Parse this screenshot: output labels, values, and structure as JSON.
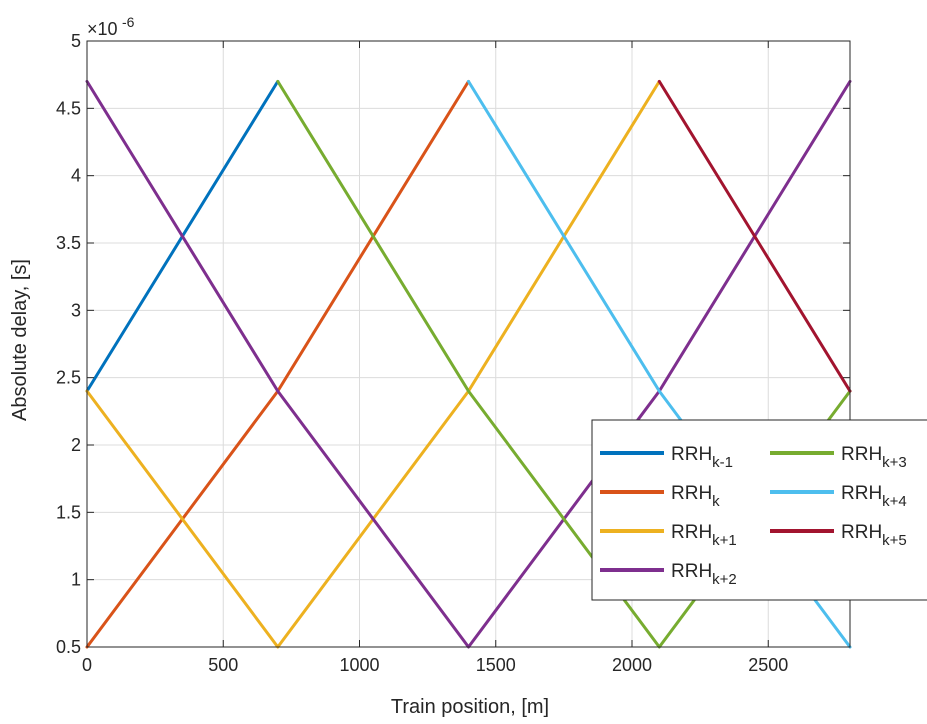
{
  "chart_data": {
    "type": "line",
    "xlabel": "Train position, [m]",
    "ylabel": "Absolute delay, [s]",
    "exponent": {
      "prefix": "×10",
      "power": "-6"
    },
    "xlim": [
      0,
      2800
    ],
    "ylim": [
      0.5,
      5.0
    ],
    "xticks": [
      0,
      500,
      1000,
      1500,
      2000,
      2500
    ],
    "yticks": [
      0.5,
      1,
      1.5,
      2,
      2.5,
      3,
      3.5,
      4,
      4.5,
      5
    ],
    "grid": true,
    "legend_position": "lower-right, two columns, partly outside the axes",
    "series": [
      {
        "name_base": "RRH",
        "name_sub": "k-1",
        "color": "#0072BD",
        "points": [
          [
            0,
            2.4
          ],
          [
            700,
            4.7
          ]
        ]
      },
      {
        "name_base": "RRH",
        "name_sub": "k",
        "color": "#D95319",
        "points": [
          [
            0,
            0.5
          ],
          [
            700,
            2.4
          ],
          [
            1400,
            4.7
          ]
        ]
      },
      {
        "name_base": "RRH",
        "name_sub": "k+1",
        "color": "#EDB120",
        "points": [
          [
            0,
            2.4
          ],
          [
            700,
            0.5
          ],
          [
            1400,
            2.4
          ],
          [
            2100,
            4.7
          ]
        ]
      },
      {
        "name_base": "RRH",
        "name_sub": "k+2",
        "color": "#7E2F8E",
        "points": [
          [
            0,
            4.7
          ],
          [
            700,
            2.4
          ],
          [
            1400,
            0.5
          ],
          [
            2100,
            2.4
          ],
          [
            2800,
            4.7
          ]
        ]
      },
      {
        "name_base": "RRH",
        "name_sub": "k+3",
        "color": "#77AC30",
        "points": [
          [
            700,
            4.7
          ],
          [
            1400,
            2.4
          ],
          [
            2100,
            0.5
          ],
          [
            2800,
            2.4
          ]
        ]
      },
      {
        "name_base": "RRH",
        "name_sub": "k+4",
        "color": "#4DBEEE",
        "points": [
          [
            1400,
            4.7
          ],
          [
            2100,
            2.4
          ],
          [
            2800,
            0.5
          ]
        ]
      },
      {
        "name_base": "RRH",
        "name_sub": "k+5",
        "color": "#A2142F",
        "points": [
          [
            2100,
            4.7
          ],
          [
            2800,
            2.4
          ]
        ]
      }
    ],
    "legend_order": [
      0,
      4,
      1,
      5,
      2,
      6,
      3
    ]
  }
}
